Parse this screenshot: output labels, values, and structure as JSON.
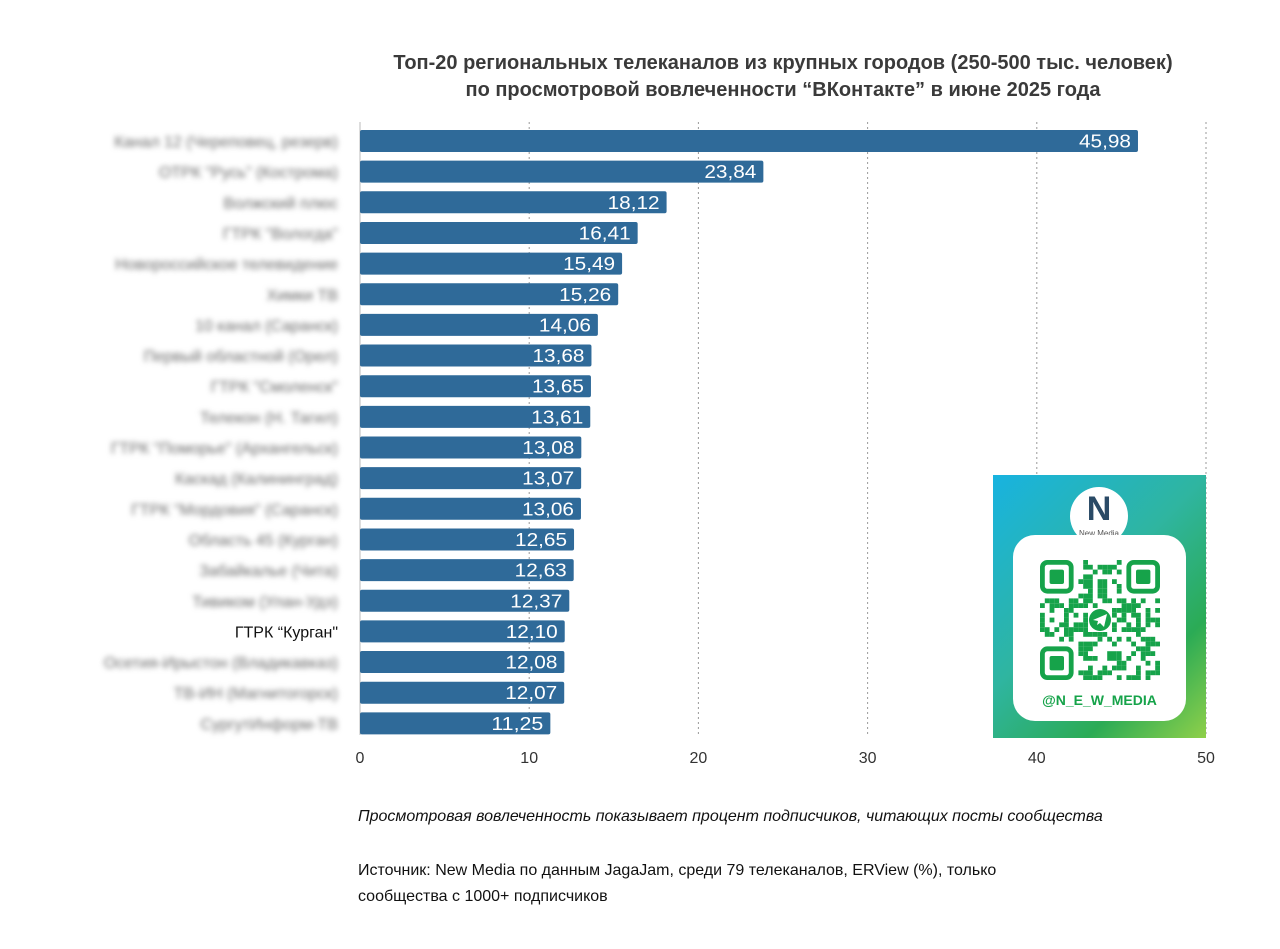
{
  "title_lines": [
    "Топ-20 региональных телеканалов из крупных городов (250-500 тыс. человек)",
    "по просмотровой вовлеченности “ВКонтакте” в июне 2025 года"
  ],
  "chart_data": {
    "type": "bar",
    "orientation": "horizontal",
    "categories": [
      "Канал 12 (Череповец, резерв)",
      "ОТРК \"Русь\" (Кострома)",
      "Волжский плюс",
      "ГТРК \"Вологда\"",
      "Новороссийское телевидение",
      "Химки ТВ",
      "10 канал (Саранск)",
      "Первый областной (Орел)",
      "ГТРК \"Смоленск\"",
      "Телекон (Н. Тагил)",
      "ГТРК \"Поморье\" (Архангельск)",
      "Каскад (Калининград)",
      "ГТРК \"Мордовия\" (Саранск)",
      "Область 45 (Курган)",
      "Забайкалье (Чита)",
      "Тивиком (Улан-Удэ)",
      "ГТРК “Курган\"",
      "Осетия-Ирыстон (Владикавказ)",
      "ТВ-ИН (Магнитогорск)",
      "СургутИнформ-ТВ"
    ],
    "values": [
      45.98,
      23.84,
      18.12,
      16.41,
      15.49,
      15.26,
      14.06,
      13.68,
      13.65,
      13.61,
      13.08,
      13.07,
      13.06,
      12.65,
      12.63,
      12.37,
      12.1,
      12.08,
      12.07,
      11.25
    ],
    "value_labels": [
      "45,98",
      "23,84",
      "18,12",
      "16,41",
      "15,49",
      "15,26",
      "14,06",
      "13,68",
      "13,65",
      "13,61",
      "13,08",
      "13,07",
      "13,06",
      "12,65",
      "12,63",
      "12,37",
      "12,10",
      "12,08",
      "12,07",
      "11,25"
    ],
    "highlighted_category": "ГТРК “Курган\"",
    "xlim": [
      0,
      50
    ],
    "xticks": [
      "0",
      "10",
      "20",
      "30",
      "40",
      "50"
    ],
    "grid": "vertical-dotted",
    "bar_color": "#2f6a99"
  },
  "qr_card": {
    "logo_letter": "N",
    "logo_text": "New Media",
    "handle": "@N_E_W_MEDIA"
  },
  "note": "Просмотровая вовлеченность показывает процент подписчиков, читающих посты сообщества",
  "source_lines": [
    "Источник: New Media по данным JagaJam, среди 79 телеканалов, ERView (%), только",
    "сообщества с 1000+ подписчиков"
  ]
}
